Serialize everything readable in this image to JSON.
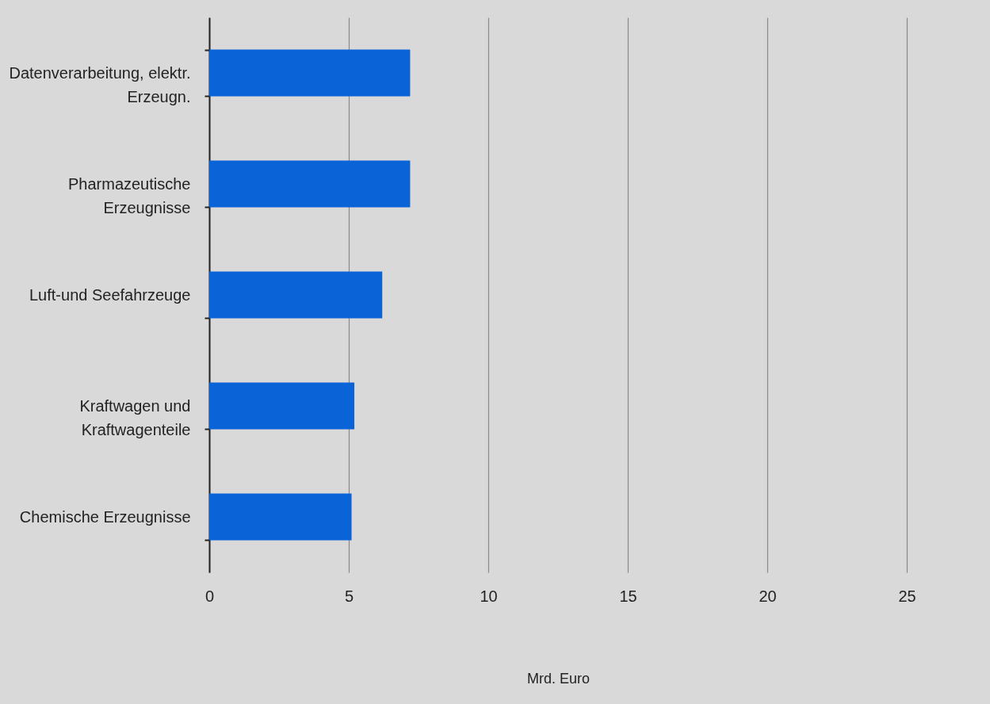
{
  "chart_data": {
    "type": "bar",
    "orientation": "horizontal",
    "xlabel": "Mrd. Euro",
    "categories": [
      "Datenverarbeitung, elektr. Erzeugn.",
      "Pharmazeutische Erzeugnisse",
      "Luft-und Seefahrzeuge",
      "Kraftwagen und Kraftwagenteile",
      "Chemische Erzeugnisse"
    ],
    "values": [
      7.2,
      7.2,
      6.2,
      5.2,
      5.1
    ],
    "color": "#0b63d8",
    "xlim": [
      0,
      25
    ],
    "xticks": [
      0,
      5,
      10,
      15,
      20,
      25
    ],
    "grid": "x"
  }
}
